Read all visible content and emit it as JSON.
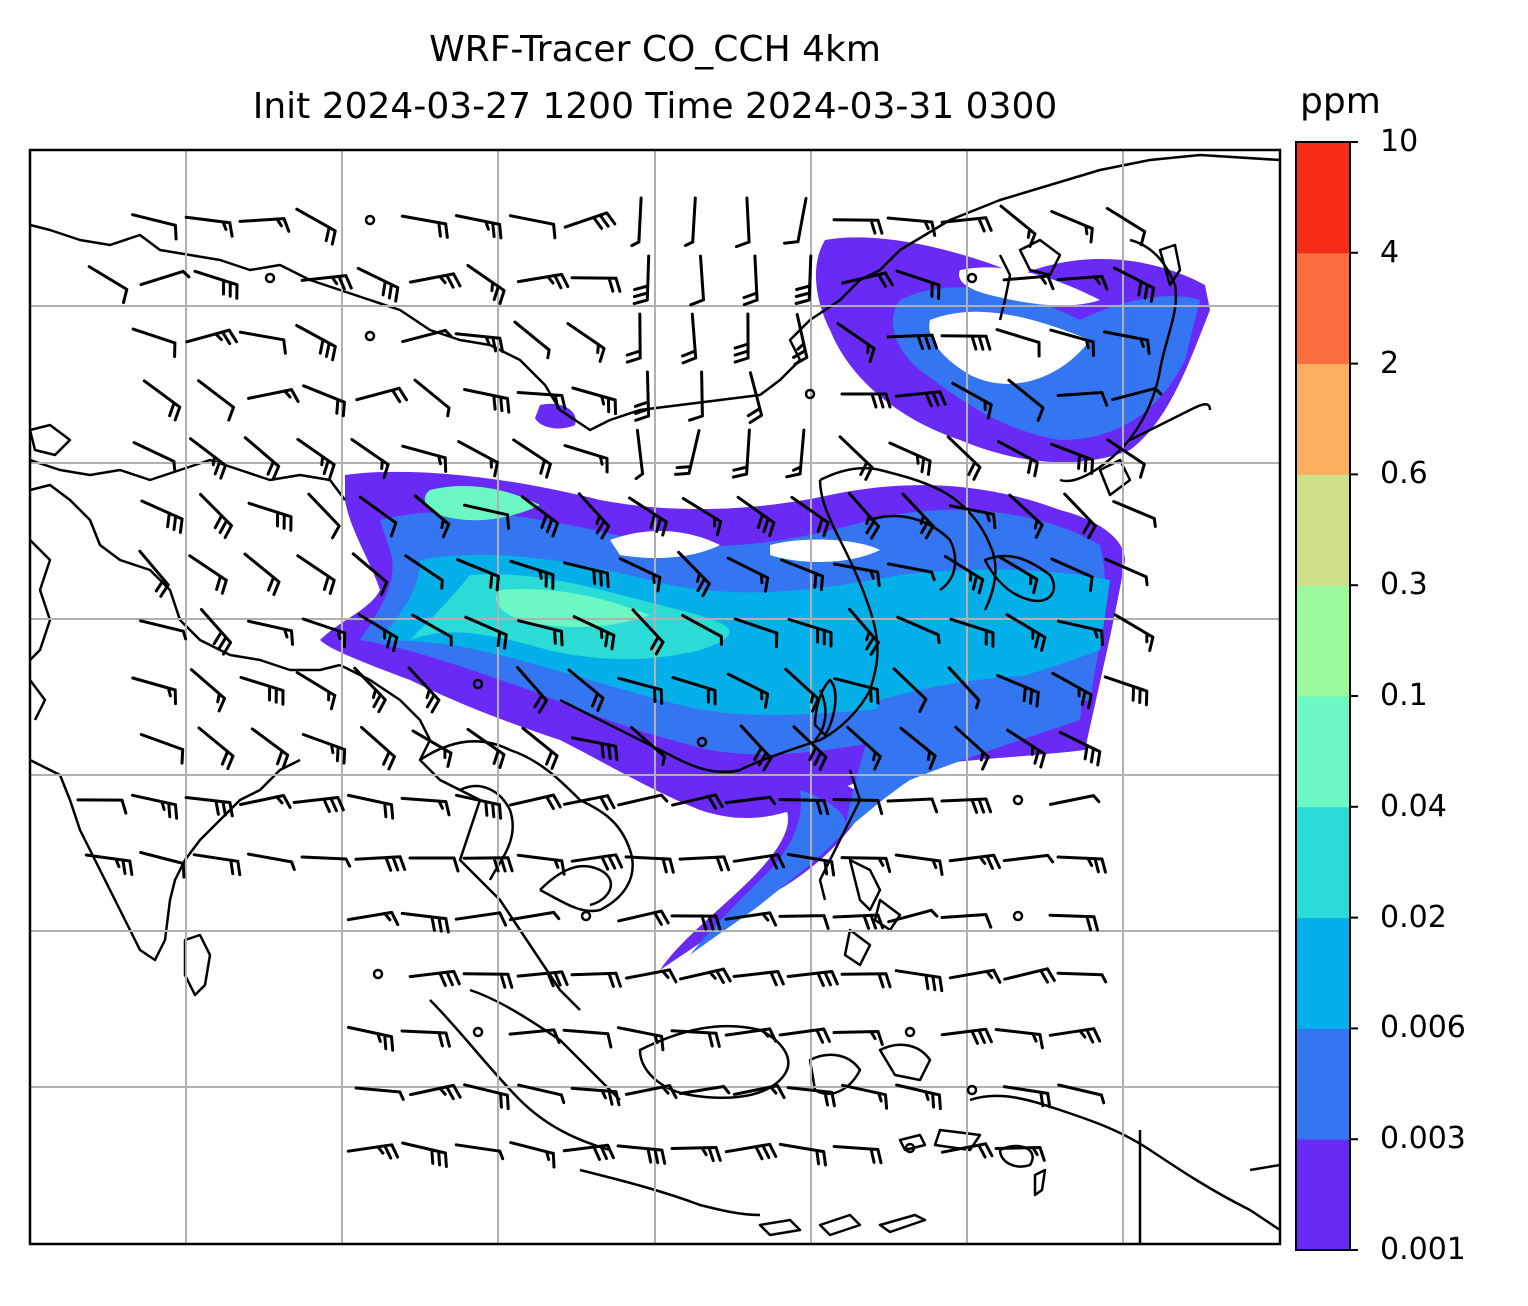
{
  "title_line1": "WRF-Tracer CO_CCH 4km",
  "title_line2": "Init 2024-03-27 1200 Time 2024-03-31 0300",
  "colorbar": {
    "unit": "ppm",
    "levels": [
      "0.001",
      "0.003",
      "0.006",
      "0.02",
      "0.04",
      "0.1",
      "0.3",
      "0.6",
      "2",
      "4",
      "10"
    ],
    "colors": [
      "#6a2af5",
      "#3476f2",
      "#05b0ea",
      "#2bdbd6",
      "#6cf8c2",
      "#9cf99c",
      "#cfe08a",
      "#fdae61",
      "#fb6d3c",
      "#f72c18"
    ]
  },
  "colors": {
    "frame": "#000000",
    "grid": "#b0b0b0",
    "coastline": "#000000",
    "wind_barb": "#000000"
  }
}
